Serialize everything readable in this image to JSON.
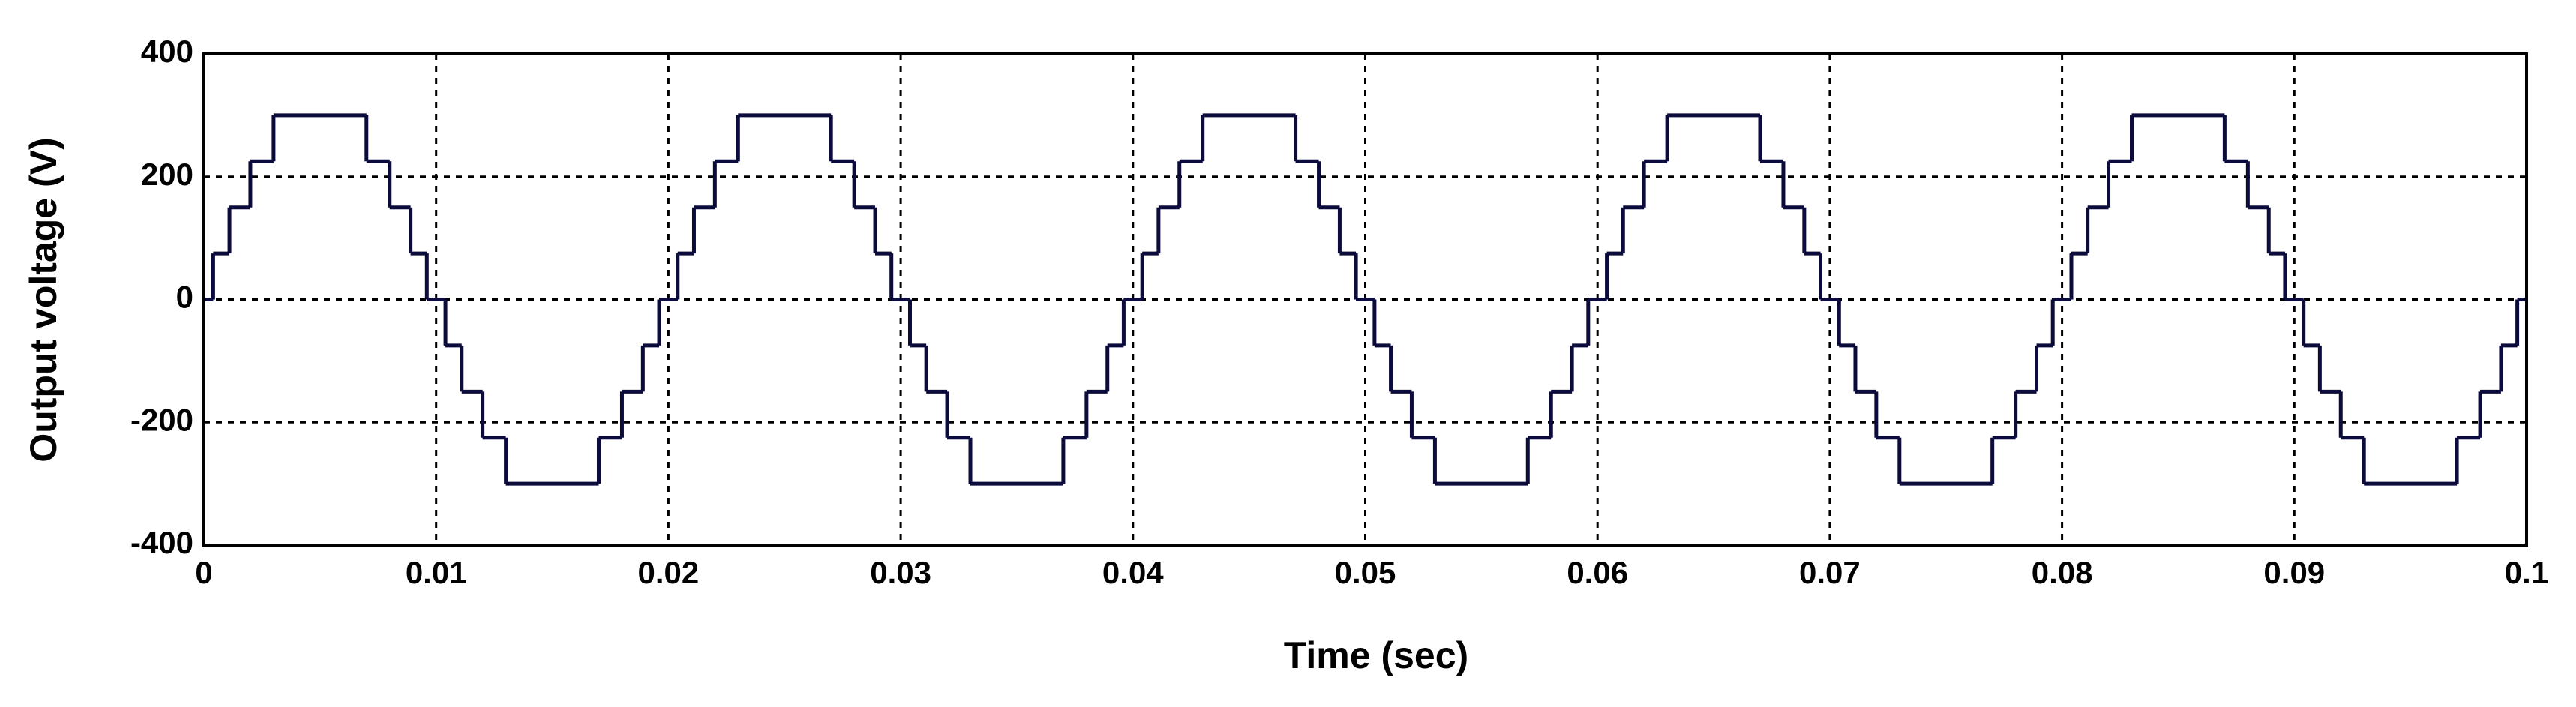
{
  "chart_data": {
    "type": "line",
    "step": true,
    "x_label": "Time (sec)",
    "y_label": "Output voltage (V)",
    "x": [
      0,
      0.0004,
      0.0011,
      0.002,
      0.003,
      0.007,
      0.008,
      0.0089,
      0.0096,
      0.0104,
      0.0111,
      0.012,
      0.013,
      0.017,
      0.018,
      0.0189,
      0.0196,
      0.02,
      0.0204,
      0.0211,
      0.022,
      0.023,
      0.027,
      0.028,
      0.0289,
      0.0296,
      0.0304,
      0.0311,
      0.032,
      0.033,
      0.037,
      0.038,
      0.0389,
      0.0396,
      0.04,
      0.0404,
      0.0411,
      0.042,
      0.043,
      0.047,
      0.048,
      0.0489,
      0.0496,
      0.0504,
      0.0511,
      0.052,
      0.053,
      0.057,
      0.058,
      0.0589,
      0.0596,
      0.06,
      0.0604,
      0.0611,
      0.062,
      0.063,
      0.067,
      0.068,
      0.0689,
      0.0696,
      0.0704,
      0.0711,
      0.072,
      0.073,
      0.077,
      0.078,
      0.0789,
      0.0796,
      0.08,
      0.0804,
      0.0811,
      0.082,
      0.083,
      0.087,
      0.088,
      0.0889,
      0.0896,
      0.0904,
      0.0911,
      0.092,
      0.093,
      0.097,
      0.098,
      0.0989,
      0.0996,
      0.1
    ],
    "values": [
      0,
      75,
      150,
      225,
      300,
      225,
      150,
      75,
      0,
      -75,
      -150,
      -225,
      -300,
      -225,
      -150,
      -75,
      0,
      0,
      75,
      150,
      225,
      300,
      225,
      150,
      75,
      0,
      -75,
      -150,
      -225,
      -300,
      -225,
      -150,
      -75,
      0,
      0,
      75,
      150,
      225,
      300,
      225,
      150,
      75,
      0,
      -75,
      -150,
      -225,
      -300,
      -225,
      -150,
      -75,
      0,
      0,
      75,
      150,
      225,
      300,
      225,
      150,
      75,
      0,
      -75,
      -150,
      -225,
      -300,
      -225,
      -150,
      -75,
      0,
      0,
      75,
      150,
      225,
      300,
      225,
      150,
      75,
      0,
      -75,
      -150,
      -225,
      -300,
      -225,
      -150,
      -75,
      0,
      0
    ],
    "color": "#0b0b3c",
    "xlim": [
      0,
      0.1
    ],
    "ylim": [
      -400,
      400
    ],
    "xticks": [
      0,
      0.01,
      0.02,
      0.03,
      0.04,
      0.05,
      0.06,
      0.07,
      0.08,
      0.09,
      0.1
    ],
    "yticks": [
      -400,
      -200,
      0,
      200,
      400
    ],
    "grid": true
  }
}
